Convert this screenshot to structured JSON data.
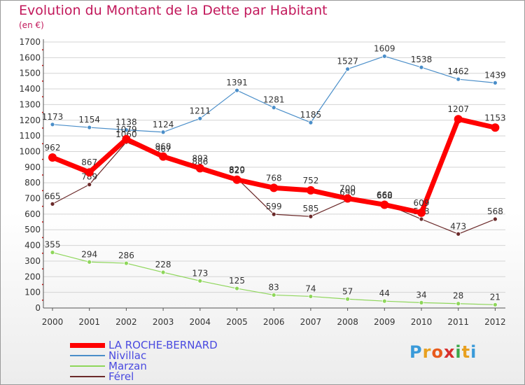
{
  "title": "Evolution du Montant de la Dette par Habitant",
  "unit": "(en €)",
  "logo": {
    "text": "Proxiti",
    "colors": [
      "#3a9ad9",
      "#e8a020",
      "#e85a1c",
      "#d62e2e",
      "#3aa84a",
      "#e8a020",
      "#3a9ad9"
    ]
  },
  "chart_data": {
    "type": "line",
    "categories": [
      "2000",
      "2001",
      "2002",
      "2003",
      "2004",
      "2005",
      "2006",
      "2007",
      "2008",
      "2009",
      "2010",
      "2011",
      "2012"
    ],
    "yticks": [
      "0",
      "100",
      "200",
      "300",
      "400",
      "500",
      "600",
      "700",
      "800",
      "900",
      "1000",
      "1100",
      "1200",
      "1300",
      "1400",
      "1500",
      "1600",
      "1700"
    ],
    "ylim": [
      0,
      1700
    ],
    "grid": "horizontal",
    "legend_position": "bottom-left",
    "series": [
      {
        "name": "Nivillac",
        "color": "#4a8ec9",
        "width": 1.2,
        "marker": 3,
        "values": [
          1173,
          1154,
          1138,
          1124,
          1211,
          1391,
          1281,
          1185,
          1527,
          1609,
          1538,
          1462,
          1439
        ],
        "labels": [
          "1173",
          "1154",
          "1138",
          "1124",
          "1211",
          "1391",
          "1281",
          "1185",
          "1527",
          "1609",
          "1538",
          "1462",
          "1439"
        ]
      },
      {
        "name": "Marzan",
        "color": "#8ed65a",
        "width": 1.2,
        "marker": 3,
        "values": [
          355,
          294,
          286,
          228,
          173,
          125,
          83,
          74,
          57,
          44,
          34,
          28,
          21
        ],
        "labels": [
          "355",
          "294",
          "286",
          "228",
          "173",
          "125",
          "83",
          "74",
          "57",
          "44",
          "34",
          "28",
          "21"
        ]
      },
      {
        "name": "Férel",
        "color": "#6b2a2a",
        "width": 1.2,
        "marker": 3,
        "values": [
          665,
          789,
          1060,
          967,
          886,
          829,
          599,
          585,
          690,
          668,
          568,
          473,
          568
        ],
        "labels": [
          "665",
          "789",
          "1060",
          "967",
          "886",
          "829",
          "599",
          "585",
          "690",
          "668",
          "568",
          "473",
          "568"
        ]
      },
      {
        "name": "LA ROCHE-BERNARD",
        "color": "#ff0000",
        "width": 7,
        "marker": 6,
        "values": [
          962,
          867,
          1079,
          968,
          893,
          820,
          768,
          752,
          700,
          660,
          609,
          1207,
          1153
        ],
        "labels": [
          "962",
          "867",
          "1079",
          "968",
          "893",
          "820",
          "768",
          "752",
          "700",
          "660",
          "609",
          "1207",
          "1153"
        ]
      }
    ]
  },
  "legend": [
    {
      "label": "LA ROCHE-BERNARD",
      "color": "#ff0000",
      "thickness": 7
    },
    {
      "label": "Nivillac",
      "color": "#4a8ec9",
      "thickness": 2
    },
    {
      "label": "Marzan",
      "color": "#8ed65a",
      "thickness": 2
    },
    {
      "label": "Férel",
      "color": "#6b2a2a",
      "thickness": 2
    }
  ]
}
